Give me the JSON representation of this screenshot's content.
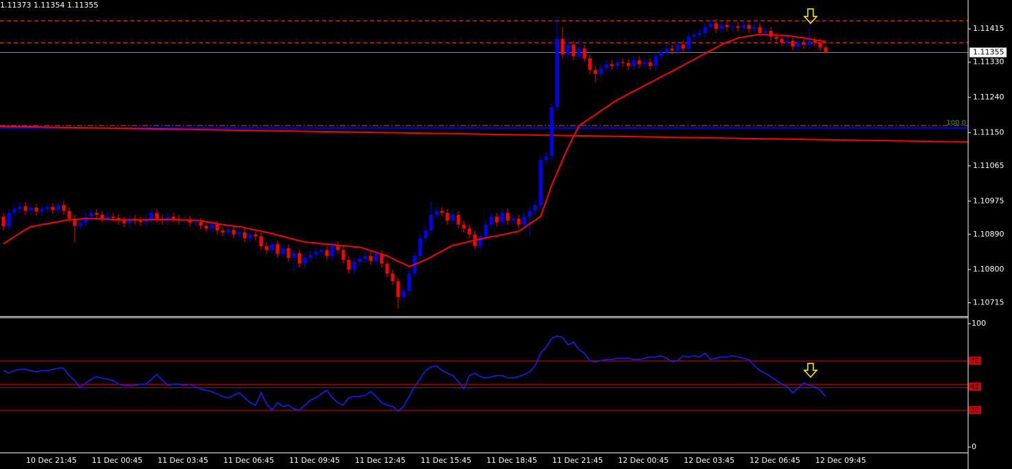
{
  "chart_data": [
    {
      "type": "candlestick",
      "title": "1.11373 1.11354 1.11355",
      "up_color": "#0000ff",
      "down_color": "#ff0000",
      "categories": [
        null,
        null,
        null,
        null,
        "10 Dec 21:45",
        null,
        null,
        null,
        null,
        null,
        null,
        null,
        null,
        null,
        null,
        null,
        "11 Dec 00:45",
        null,
        null,
        null,
        null,
        null,
        null,
        null,
        null,
        null,
        null,
        null,
        "11 Dec 03:45",
        null,
        null,
        null,
        null,
        null,
        null,
        null,
        null,
        null,
        null,
        null,
        "11 Dec 06:45",
        null,
        null,
        null,
        null,
        null,
        null,
        null,
        null,
        null,
        null,
        null,
        "11 Dec 09:45",
        null,
        null,
        null,
        null,
        null,
        null,
        null,
        null,
        null,
        null,
        null,
        "11 Dec 12:45",
        null,
        null,
        null,
        null,
        null,
        null,
        null,
        null,
        null,
        null,
        null,
        "11 Dec 15:45",
        null,
        null,
        null,
        null,
        null,
        null,
        null,
        null,
        null,
        null,
        null,
        "11 Dec 18:45",
        null,
        null,
        null,
        null,
        null,
        null,
        null,
        null,
        null,
        null,
        null,
        "11 Dec 21:45",
        null,
        null,
        null,
        null,
        null,
        null,
        null,
        null,
        null,
        null,
        null,
        "12 Dec 00:45",
        null,
        null,
        null,
        null,
        null,
        null,
        null,
        null,
        null,
        null,
        null,
        "12 Dec 03:45",
        null,
        null,
        null,
        null,
        null,
        null,
        null,
        null,
        null,
        null,
        null,
        "12 Dec 06:45",
        null,
        null,
        null,
        null,
        null,
        null,
        null,
        null,
        null,
        null,
        null,
        "12 Dec 09:45",
        null,
        null
      ],
      "open": [
        1.10935,
        1.1091,
        1.10945,
        1.10955,
        1.10962,
        1.1095,
        1.10958,
        1.10948,
        1.10955,
        1.1096,
        1.10952,
        1.10965,
        1.1095,
        1.1093,
        1.10912,
        1.1092,
        1.10935,
        1.10945,
        1.1094,
        1.1093,
        1.10935,
        1.10932,
        1.10925,
        1.10918,
        1.1093,
        1.10925,
        1.10922,
        1.10928,
        1.10945,
        1.1093,
        1.10925,
        1.10935,
        1.1093,
        1.10925,
        1.10928,
        1.1092,
        1.10922,
        1.10912,
        1.10905,
        1.10915,
        1.109,
        1.10895,
        1.10902,
        1.1089,
        1.10895,
        1.1088,
        1.1089,
        1.10885,
        1.1086,
        1.1085,
        1.10865,
        1.1084,
        1.10855,
        1.1083,
        1.10842,
        1.10815,
        1.1083,
        1.10838,
        1.10845,
        1.1085,
        1.10835,
        1.10862,
        1.1085,
        1.10825,
        1.108,
        1.1082,
        1.10828,
        1.10835,
        1.10822,
        1.1084,
        1.10815,
        1.1079,
        1.1077,
        1.1073,
        1.10745,
        1.1079,
        1.10835,
        1.1088,
        1.109,
        1.1094,
        1.1095,
        1.10945,
        1.10925,
        1.1094,
        1.10915,
        1.10905,
        1.1089,
        1.1086,
        1.10885,
        1.10915,
        1.10935,
        1.1092,
        1.10945,
        1.10925,
        1.1093,
        1.10915,
        1.10935,
        1.1095,
        1.10965,
        1.1108,
        1.1109,
        1.11215,
        1.1139,
        1.1135,
        1.11375,
        1.11345,
        1.11365,
        1.1134,
        1.1131,
        1.113,
        1.11315,
        1.11325,
        1.1132,
        1.1133,
        1.11328,
        1.1132,
        1.11335,
        1.11325,
        1.1133,
        1.1132,
        1.11345,
        1.11355,
        1.11365,
        1.1136,
        1.11375,
        1.11365,
        1.11395,
        1.114,
        1.11405,
        1.1142,
        1.1143,
        1.11415,
        1.11425,
        1.1142,
        1.11422,
        1.11418,
        1.11425,
        1.11415,
        1.1142,
        1.11405,
        1.1141,
        1.11395,
        1.1139,
        1.1138,
        1.11385,
        1.1137,
        1.1138,
        1.11375,
        1.11385,
        1.1138,
        1.11368
      ],
      "high": [
        1.10945,
        1.10955,
        1.10965,
        1.10972,
        1.10972,
        1.10968,
        1.10968,
        1.10965,
        1.1097,
        1.1097,
        1.10975,
        1.10975,
        1.1096,
        1.1094,
        1.1093,
        1.10945,
        1.10955,
        1.10955,
        1.1095,
        1.10945,
        1.10945,
        1.10942,
        1.10935,
        1.1094,
        1.1094,
        1.10935,
        1.10938,
        1.10955,
        1.10955,
        1.1094,
        1.10945,
        1.10945,
        1.1094,
        1.10938,
        1.10938,
        1.10932,
        1.10932,
        1.10922,
        1.10925,
        1.10925,
        1.1091,
        1.10912,
        1.10912,
        1.10905,
        1.10905,
        1.109,
        1.109,
        1.10895,
        1.1087,
        1.10875,
        1.10875,
        1.10865,
        1.10865,
        1.10852,
        1.10852,
        1.1084,
        1.10848,
        1.10855,
        1.1086,
        1.1086,
        1.10872,
        1.10872,
        1.1086,
        1.10835,
        1.1083,
        1.10838,
        1.10845,
        1.10845,
        1.1085,
        1.1085,
        1.10825,
        1.108,
        1.1078,
        1.10755,
        1.108,
        1.10845,
        1.1089,
        1.1091,
        1.10975,
        1.1096,
        1.1096,
        1.10955,
        1.1095,
        1.1095,
        1.10925,
        1.10915,
        1.109,
        1.10895,
        1.10925,
        1.10945,
        1.10945,
        1.10955,
        1.10955,
        1.1094,
        1.1094,
        1.10945,
        1.1096,
        1.10975,
        1.1109,
        1.111,
        1.11225,
        1.11445,
        1.1142,
        1.114,
        1.11385,
        1.1139,
        1.11375,
        1.1135,
        1.1132,
        1.11325,
        1.11335,
        1.11335,
        1.1134,
        1.1134,
        1.11338,
        1.11345,
        1.11345,
        1.1134,
        1.1134,
        1.11355,
        1.11365,
        1.11375,
        1.11375,
        1.11385,
        1.11385,
        1.11405,
        1.1141,
        1.11415,
        1.1143,
        1.1144,
        1.1144,
        1.11435,
        1.11435,
        1.11432,
        1.11432,
        1.11435,
        1.11435,
        1.1143,
        1.1143,
        1.1142,
        1.1142,
        1.11405,
        1.114,
        1.11395,
        1.11395,
        1.1139,
        1.1139,
        1.1142,
        1.11395,
        1.1139,
        1.11373
      ],
      "low": [
        1.109,
        1.109,
        1.10935,
        1.10945,
        1.1094,
        1.1094,
        1.10938,
        1.10938,
        1.10945,
        1.10942,
        1.10942,
        1.1094,
        1.1092,
        1.1087,
        1.10902,
        1.1091,
        1.10925,
        1.1093,
        1.1092,
        1.1092,
        1.10922,
        1.10915,
        1.10908,
        1.10908,
        1.10915,
        1.10912,
        1.10912,
        1.10918,
        1.1092,
        1.10915,
        1.10915,
        1.1092,
        1.10915,
        1.10915,
        1.1091,
        1.1091,
        1.10902,
        1.10895,
        1.10895,
        1.1089,
        1.10885,
        1.10885,
        1.1088,
        1.1088,
        1.1087,
        1.1087,
        1.10875,
        1.1085,
        1.1084,
        1.1084,
        1.1083,
        1.1083,
        1.1082,
        1.10795,
        1.10805,
        1.10805,
        1.1082,
        1.10828,
        1.10835,
        1.10825,
        1.10825,
        1.1084,
        1.10815,
        1.1079,
        1.1079,
        1.1081,
        1.10818,
        1.10812,
        1.10812,
        1.10805,
        1.1078,
        1.1076,
        1.107,
        1.1072,
        1.10735,
        1.1078,
        1.10825,
        1.1087,
        1.1089,
        1.1093,
        1.10935,
        1.10915,
        1.10915,
        1.10905,
        1.10895,
        1.1088,
        1.1085,
        1.1085,
        1.10875,
        1.10905,
        1.1091,
        1.1091,
        1.10915,
        1.10915,
        1.10905,
        1.10905,
        1.10885,
        1.1094,
        1.10955,
        1.1107,
        1.1108,
        1.11205,
        1.1134,
        1.1134,
        1.11335,
        1.11335,
        1.1133,
        1.113,
        1.1128,
        1.1129,
        1.11305,
        1.1131,
        1.1131,
        1.11318,
        1.1131,
        1.1131,
        1.11315,
        1.11315,
        1.1131,
        1.1131,
        1.11335,
        1.11345,
        1.1135,
        1.1135,
        1.11355,
        1.11355,
        1.11385,
        1.1139,
        1.11395,
        1.1141,
        1.11405,
        1.11405,
        1.1141,
        1.1141,
        1.11408,
        1.11408,
        1.11405,
        1.11405,
        1.11395,
        1.11395,
        1.11385,
        1.1138,
        1.1137,
        1.1137,
        1.1136,
        1.1136,
        1.11365,
        1.11365,
        1.1137,
        1.11358,
        1.11354
      ],
      "close": [
        1.1091,
        1.10945,
        1.10955,
        1.10962,
        1.1095,
        1.10958,
        1.10948,
        1.10955,
        1.1096,
        1.10952,
        1.10965,
        1.1095,
        1.1093,
        1.10912,
        1.1092,
        1.10935,
        1.10945,
        1.1094,
        1.1093,
        1.10935,
        1.10932,
        1.10925,
        1.10918,
        1.1093,
        1.10925,
        1.10922,
        1.10928,
        1.10945,
        1.1093,
        1.10925,
        1.10935,
        1.1093,
        1.10925,
        1.10928,
        1.1092,
        1.10922,
        1.10912,
        1.10905,
        1.10915,
        1.109,
        1.10895,
        1.10902,
        1.1089,
        1.10895,
        1.1088,
        1.1089,
        1.10885,
        1.1086,
        1.1085,
        1.10865,
        1.1084,
        1.10855,
        1.1083,
        1.10842,
        1.10815,
        1.1083,
        1.10838,
        1.10845,
        1.1085,
        1.10835,
        1.10862,
        1.1085,
        1.10825,
        1.108,
        1.1082,
        1.10828,
        1.10835,
        1.10822,
        1.1084,
        1.10815,
        1.1079,
        1.1077,
        1.1073,
        1.10745,
        1.1079,
        1.10835,
        1.1088,
        1.109,
        1.1094,
        1.1095,
        1.10945,
        1.10925,
        1.1094,
        1.10915,
        1.10905,
        1.1089,
        1.1086,
        1.10885,
        1.10915,
        1.10935,
        1.1092,
        1.10945,
        1.10925,
        1.1093,
        1.10915,
        1.10935,
        1.1095,
        1.10965,
        1.1108,
        1.1109,
        1.11215,
        1.1139,
        1.1135,
        1.11375,
        1.11345,
        1.11365,
        1.1134,
        1.1131,
        1.113,
        1.11315,
        1.11325,
        1.1132,
        1.1133,
        1.11328,
        1.1132,
        1.11335,
        1.11325,
        1.1133,
        1.1132,
        1.11345,
        1.11355,
        1.11365,
        1.1136,
        1.11375,
        1.11365,
        1.11395,
        1.114,
        1.11405,
        1.1142,
        1.1143,
        1.11415,
        1.11425,
        1.1142,
        1.11422,
        1.11418,
        1.11425,
        1.11415,
        1.1142,
        1.11405,
        1.1141,
        1.11395,
        1.1139,
        1.1138,
        1.11385,
        1.1137,
        1.1138,
        1.11375,
        1.11385,
        1.1138,
        1.11368,
        1.11355
      ],
      "series": [
        {
          "color": "#ff0000",
          "values": [
            1.10866,
            1.10875,
            1.10884,
            1.10893,
            1.10902,
            1.1091,
            1.10912,
            1.10915,
            1.10917,
            1.1092,
            1.10922,
            1.10925,
            1.10927,
            1.10928,
            1.10929,
            1.1093,
            1.1093,
            1.1093,
            1.10929,
            1.10929,
            1.10928,
            1.10928,
            1.10927,
            1.10927,
            1.10927,
            1.10927,
            1.10927,
            1.10928,
            1.10928,
            1.10928,
            1.10928,
            1.10928,
            1.10927,
            1.10927,
            1.10926,
            1.10926,
            1.10925,
            1.10922,
            1.1092,
            1.10917,
            1.10915,
            1.10913,
            1.10911,
            1.1091,
            1.10907,
            1.10904,
            1.10901,
            1.10898,
            1.10895,
            1.10892,
            1.10888,
            1.10885,
            1.10881,
            1.10877,
            1.10874,
            1.1087,
            1.10869,
            1.10868,
            1.10866,
            1.10865,
            1.10864,
            1.10862,
            1.10861,
            1.1086,
            1.10858,
            1.10857,
            1.10853,
            1.10848,
            1.10844,
            1.10839,
            1.10835,
            1.10828,
            1.10821,
            1.10815,
            1.10808,
            1.10813,
            1.10819,
            1.10825,
            1.10832,
            1.1084,
            1.10847,
            1.10855,
            1.10862,
            1.10865,
            1.10868,
            1.10872,
            1.10875,
            1.10878,
            1.10881,
            1.10884,
            1.10886,
            1.10889,
            1.10892,
            1.10895,
            1.10898,
            1.10907,
            1.10917,
            1.10926,
            1.10936,
            1.10975,
            1.11015,
            1.11047,
            1.1108,
            1.11112,
            1.1114,
            1.11168,
            1.11177,
            1.11187,
            1.11196,
            1.11206,
            1.11215,
            1.11225,
            1.11234,
            1.11241,
            1.11249,
            1.11256,
            1.11263,
            1.11271,
            1.11278,
            1.11285,
            1.11293,
            1.113,
            1.11307,
            1.11315,
            1.11322,
            1.1133,
            1.11337,
            1.11345,
            1.11352,
            1.1136,
            1.11367,
            1.11375,
            1.11381,
            1.11386,
            1.11392,
            1.11394,
            1.11397,
            1.11399,
            1.11401,
            1.114,
            1.114,
            1.11399,
            1.11399,
            1.11398,
            1.11396,
            1.11394,
            1.11392,
            1.1139,
            1.11387,
            1.11385,
            1.11383
          ]
        }
      ],
      "long_ma": {
        "color": "#ff0000",
        "values": [
          1.11166,
          1.11126
        ]
      },
      "hlines": [
        {
          "value": 1.11436,
          "color": "#ff4500",
          "dash": "6 4"
        },
        {
          "value": 1.1138,
          "color": "#ff4500",
          "dash": "6 4"
        },
        {
          "value": 1.11168,
          "color": "#ff4500",
          "dash": "8 3 2 3",
          "label": "100.0"
        },
        {
          "value": 1.11162,
          "color": "#0000ff",
          "width": 2
        }
      ],
      "last_price": 1.11355,
      "ylim": [
        1.10681,
        1.11489
      ],
      "yticks": [
        1.11415,
        {
          "value": 1.1133,
          "label": "1.11330"
        },
        {
          "value": 1.1124,
          "label": "1.11240"
        },
        {
          "value": 1.1115,
          "label": "1.11150"
        },
        1.11065,
        1.10975,
        {
          "value": 1.1089,
          "label": "1.10890"
        },
        {
          "value": 1.108,
          "label": "1.10800"
        },
        1.10715
      ]
    },
    {
      "type": "line",
      "color": "#1e1eff",
      "values": [
        62,
        60,
        62,
        63,
        63,
        62,
        61,
        62,
        62,
        63,
        64,
        64,
        58,
        54,
        48,
        52,
        55,
        57,
        56,
        55,
        54,
        51,
        50,
        50,
        50,
        51,
        51,
        55,
        59,
        54,
        50,
        51,
        51,
        50,
        51,
        49,
        47,
        46,
        45,
        43,
        41,
        40,
        42,
        44,
        40,
        36,
        34,
        44,
        35,
        30,
        36,
        33,
        34,
        31,
        30,
        34,
        38,
        40,
        43,
        46,
        40,
        36,
        34,
        40,
        41,
        41,
        42,
        45,
        41,
        36,
        34,
        33,
        29,
        33,
        41,
        49,
        55,
        62,
        65,
        66,
        62,
        60,
        58,
        53,
        47,
        58,
        60,
        57,
        56,
        57,
        58,
        58,
        56,
        56,
        57,
        59,
        61,
        66,
        76,
        81,
        88,
        90,
        89,
        83,
        85,
        79,
        76,
        70,
        69,
        70,
        71,
        71,
        72,
        72,
        72,
        71,
        71,
        72,
        73,
        73,
        74,
        72,
        69,
        70,
        74,
        73,
        74,
        73,
        76,
        71,
        72,
        73,
        73,
        74,
        73,
        72,
        71,
        66,
        62,
        60,
        57,
        54,
        51,
        49,
        44,
        48,
        52,
        50,
        49,
        46,
        41
      ],
      "levels": [
        70,
        51,
        48,
        30
      ],
      "level_color": "#c80000",
      "level_labels": [
        70,
        49,
        30
      ],
      "ylim": [
        -4.4,
        105.6
      ],
      "yticks": [
        0,
        100
      ]
    }
  ]
}
